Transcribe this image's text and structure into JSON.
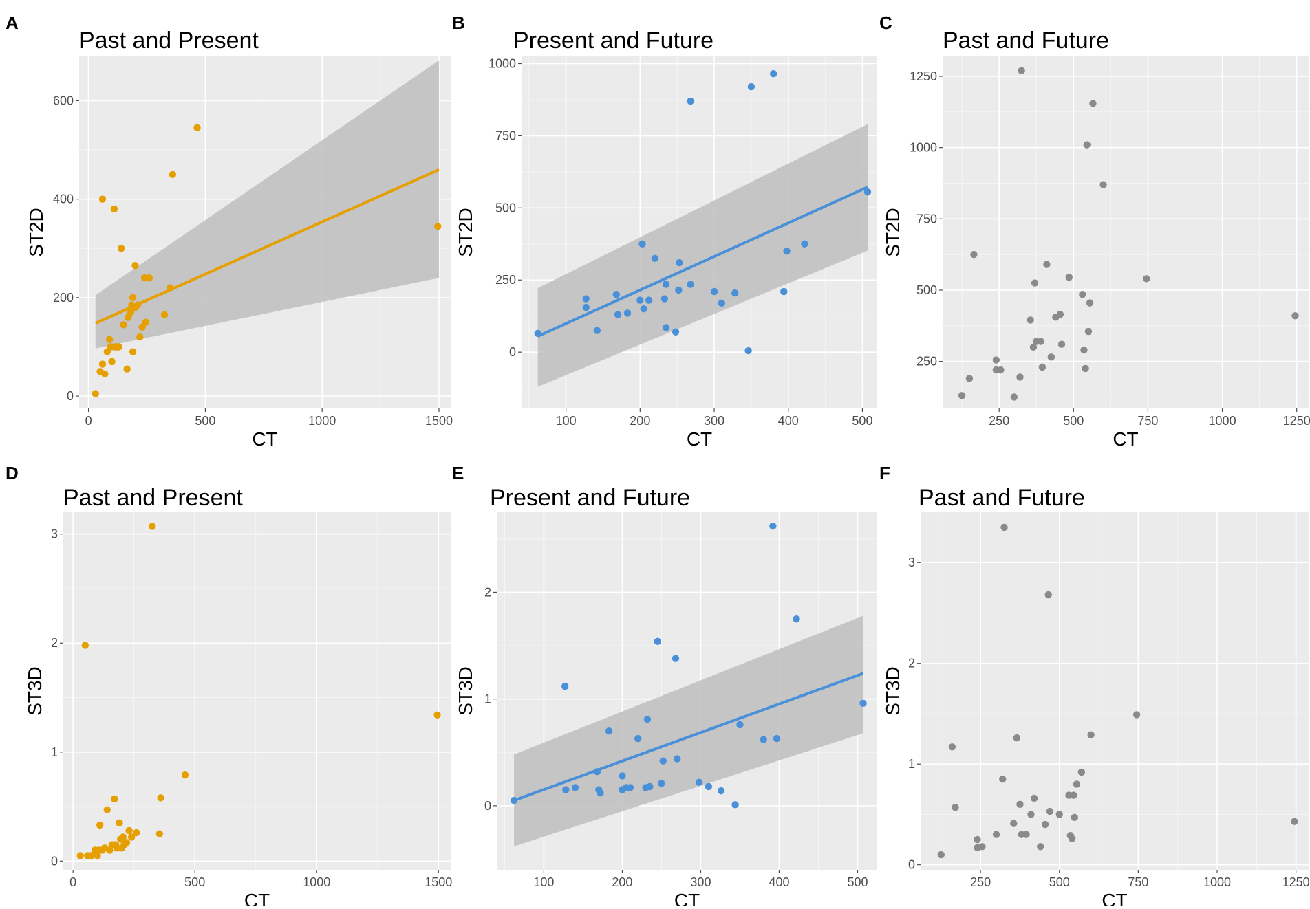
{
  "colors": {
    "panel_bg": "#ebebeb",
    "grid_major": "#ffffff",
    "grid_minor": "#f5f5f5",
    "ribbon": "#bebebe"
  },
  "chart_data": [
    {
      "panel_label": "A",
      "title": "Past and Present",
      "type": "scatter",
      "xlabel": "CT",
      "ylabel": "ST2D",
      "xlim": [
        -40,
        1550
      ],
      "ylim": [
        -25,
        690
      ],
      "xticks": [
        0,
        500,
        1000,
        1500
      ],
      "yticks": [
        0,
        200,
        400,
        600
      ],
      "color": "#e69f00",
      "points": [
        [
          30,
          5
        ],
        [
          50,
          50
        ],
        [
          60,
          65
        ],
        [
          60,
          400
        ],
        [
          70,
          45
        ],
        [
          80,
          90
        ],
        [
          90,
          115
        ],
        [
          95,
          100
        ],
        [
          100,
          70
        ],
        [
          110,
          380
        ],
        [
          110,
          100
        ],
        [
          120,
          100
        ],
        [
          130,
          100
        ],
        [
          140,
          300
        ],
        [
          150,
          145
        ],
        [
          165,
          55
        ],
        [
          170,
          160
        ],
        [
          180,
          170
        ],
        [
          185,
          185
        ],
        [
          190,
          200
        ],
        [
          190,
          90
        ],
        [
          200,
          180
        ],
        [
          200,
          265
        ],
        [
          210,
          185
        ],
        [
          220,
          120
        ],
        [
          230,
          140
        ],
        [
          240,
          240
        ],
        [
          245,
          150
        ],
        [
          260,
          240
        ],
        [
          325,
          165
        ],
        [
          350,
          220
        ],
        [
          360,
          450
        ],
        [
          465,
          545
        ],
        [
          1495,
          345
        ]
      ],
      "fit": {
        "x0": 30,
        "y0": 148,
        "x1": 1500,
        "y1": 460,
        "ci_lo0": 97,
        "ci_hi0": 205,
        "ci_lo1": 240,
        "ci_hi1": 682
      }
    },
    {
      "panel_label": "B",
      "title": "Present and Future",
      "type": "scatter",
      "xlabel": "CT",
      "ylabel": "ST2D",
      "xlim": [
        40,
        520
      ],
      "ylim": [
        -195,
        1025
      ],
      "xticks": [
        100,
        200,
        300,
        400,
        500
      ],
      "yticks": [
        0,
        250,
        500,
        750,
        1000
      ],
      "color": "#4a90d9",
      "points": [
        [
          62,
          65
        ],
        [
          127,
          185
        ],
        [
          127,
          155
        ],
        [
          142,
          75
        ],
        [
          168,
          200
        ],
        [
          170,
          130
        ],
        [
          183,
          135
        ],
        [
          200,
          180
        ],
        [
          203,
          375
        ],
        [
          205,
          150
        ],
        [
          212,
          180
        ],
        [
          220,
          325
        ],
        [
          233,
          185
        ],
        [
          235,
          85
        ],
        [
          235,
          235
        ],
        [
          248,
          70
        ],
        [
          252,
          215
        ],
        [
          253,
          310
        ],
        [
          268,
          235
        ],
        [
          268,
          870
        ],
        [
          300,
          210
        ],
        [
          310,
          170
        ],
        [
          328,
          205
        ],
        [
          346,
          5
        ],
        [
          350,
          920
        ],
        [
          380,
          965
        ],
        [
          394,
          210
        ],
        [
          398,
          350
        ],
        [
          422,
          375
        ],
        [
          507,
          555
        ]
      ],
      "fit": {
        "x0": 62,
        "y0": 55,
        "x1": 507,
        "y1": 572,
        "ci_lo0": -120,
        "ci_hi0": 222,
        "ci_lo1": 352,
        "ci_hi1": 790
      }
    },
    {
      "panel_label": "C",
      "title": "Past and Future",
      "type": "scatter",
      "xlabel": "CT",
      "ylabel": "ST2D",
      "xlim": [
        60,
        1290
      ],
      "ylim": [
        85,
        1320
      ],
      "xticks": [
        250,
        500,
        750,
        1000,
        1250
      ],
      "yticks": [
        250,
        500,
        750,
        1000,
        1250
      ],
      "color": "#8a8a8a",
      "points": [
        [
          125,
          130
        ],
        [
          150,
          190
        ],
        [
          165,
          625
        ],
        [
          240,
          255
        ],
        [
          240,
          220
        ],
        [
          255,
          220
        ],
        [
          300,
          125
        ],
        [
          320,
          195
        ],
        [
          325,
          1270
        ],
        [
          355,
          395
        ],
        [
          365,
          300
        ],
        [
          370,
          525
        ],
        [
          375,
          320
        ],
        [
          390,
          320
        ],
        [
          395,
          230
        ],
        [
          410,
          590
        ],
        [
          425,
          265
        ],
        [
          440,
          405
        ],
        [
          455,
          415
        ],
        [
          460,
          310
        ],
        [
          485,
          545
        ],
        [
          530,
          485
        ],
        [
          535,
          290
        ],
        [
          540,
          225
        ],
        [
          545,
          1010
        ],
        [
          550,
          355
        ],
        [
          555,
          455
        ],
        [
          565,
          1155
        ],
        [
          600,
          870
        ],
        [
          745,
          540
        ],
        [
          1245,
          410
        ]
      ]
    },
    {
      "panel_label": "D",
      "title": "Past and Present",
      "type": "scatter",
      "xlabel": "CT",
      "ylabel": "ST3D",
      "xlim": [
        -40,
        1550
      ],
      "ylim": [
        -0.08,
        3.2
      ],
      "xticks": [
        0,
        500,
        1000,
        1500
      ],
      "yticks": [
        0,
        1,
        2,
        3
      ],
      "color": "#e69f00",
      "points": [
        [
          30,
          0.05
        ],
        [
          50,
          1.98
        ],
        [
          60,
          0.05
        ],
        [
          75,
          0.05
        ],
        [
          90,
          0.1
        ],
        [
          100,
          0.05
        ],
        [
          105,
          0.1
        ],
        [
          110,
          0.33
        ],
        [
          120,
          0.1
        ],
        [
          130,
          0.12
        ],
        [
          140,
          0.47
        ],
        [
          150,
          0.1
        ],
        [
          160,
          0.15
        ],
        [
          170,
          0.57
        ],
        [
          175,
          0.15
        ],
        [
          180,
          0.12
        ],
        [
          190,
          0.35
        ],
        [
          195,
          0.2
        ],
        [
          200,
          0.12
        ],
        [
          205,
          0.22
        ],
        [
          210,
          0.15
        ],
        [
          220,
          0.17
        ],
        [
          230,
          0.28
        ],
        [
          240,
          0.22
        ],
        [
          260,
          0.26
        ],
        [
          325,
          3.07
        ],
        [
          355,
          0.25
        ],
        [
          360,
          0.58
        ],
        [
          460,
          0.79
        ],
        [
          1495,
          1.34
        ]
      ]
    },
    {
      "panel_label": "E",
      "title": "Present and Future",
      "type": "scatter",
      "xlabel": "CT",
      "ylabel": "ST3D",
      "xlim": [
        40,
        525
      ],
      "ylim": [
        -0.6,
        2.75
      ],
      "xticks": [
        100,
        200,
        300,
        400,
        500
      ],
      "yticks": [
        0,
        1,
        2
      ],
      "color": "#4a90d9",
      "points": [
        [
          62,
          0.05
        ],
        [
          127,
          1.12
        ],
        [
          128,
          0.15
        ],
        [
          140,
          0.17
        ],
        [
          168,
          0.32
        ],
        [
          170,
          0.15
        ],
        [
          172,
          0.12
        ],
        [
          183,
          0.7
        ],
        [
          200,
          0.28
        ],
        [
          200,
          0.15
        ],
        [
          205,
          0.17
        ],
        [
          210,
          0.17
        ],
        [
          220,
          0.63
        ],
        [
          230,
          0.17
        ],
        [
          232,
          0.81
        ],
        [
          235,
          0.18
        ],
        [
          245,
          1.54
        ],
        [
          250,
          0.21
        ],
        [
          252,
          0.42
        ],
        [
          268,
          1.38
        ],
        [
          270,
          0.44
        ],
        [
          298,
          0.22
        ],
        [
          310,
          0.18
        ],
        [
          326,
          0.14
        ],
        [
          344,
          0.01
        ],
        [
          350,
          0.76
        ],
        [
          380,
          0.62
        ],
        [
          392,
          2.62
        ],
        [
          397,
          0.63
        ],
        [
          422,
          1.75
        ],
        [
          507,
          0.96
        ]
      ],
      "fit": {
        "x0": 62,
        "y0": 0.05,
        "x1": 507,
        "y1": 1.24,
        "ci_lo0": -0.38,
        "ci_hi0": 0.48,
        "ci_lo1": 0.68,
        "ci_hi1": 1.78
      }
    },
    {
      "panel_label": "F",
      "title": "Past and Future",
      "type": "scatter",
      "xlabel": "CT",
      "ylabel": "ST3D",
      "xlim": [
        60,
        1290
      ],
      "ylim": [
        -0.05,
        3.5
      ],
      "xticks": [
        250,
        500,
        750,
        1000,
        1250
      ],
      "yticks": [
        0,
        1,
        2,
        3
      ],
      "color": "#8a8a8a",
      "points": [
        [
          125,
          0.1
        ],
        [
          160,
          1.17
        ],
        [
          170,
          0.57
        ],
        [
          240,
          0.25
        ],
        [
          240,
          0.17
        ],
        [
          255,
          0.18
        ],
        [
          300,
          0.3
        ],
        [
          320,
          0.85
        ],
        [
          325,
          3.35
        ],
        [
          355,
          0.41
        ],
        [
          365,
          1.26
        ],
        [
          375,
          0.6
        ],
        [
          380,
          0.3
        ],
        [
          395,
          0.3
        ],
        [
          410,
          0.5
        ],
        [
          420,
          0.66
        ],
        [
          440,
          0.18
        ],
        [
          455,
          0.4
        ],
        [
          465,
          2.68
        ],
        [
          470,
          0.53
        ],
        [
          500,
          0.5
        ],
        [
          530,
          0.69
        ],
        [
          535,
          0.29
        ],
        [
          540,
          0.26
        ],
        [
          545,
          0.69
        ],
        [
          548,
          0.47
        ],
        [
          555,
          0.8
        ],
        [
          570,
          0.92
        ],
        [
          600,
          1.29
        ],
        [
          745,
          1.49
        ],
        [
          1245,
          0.43
        ]
      ]
    }
  ]
}
